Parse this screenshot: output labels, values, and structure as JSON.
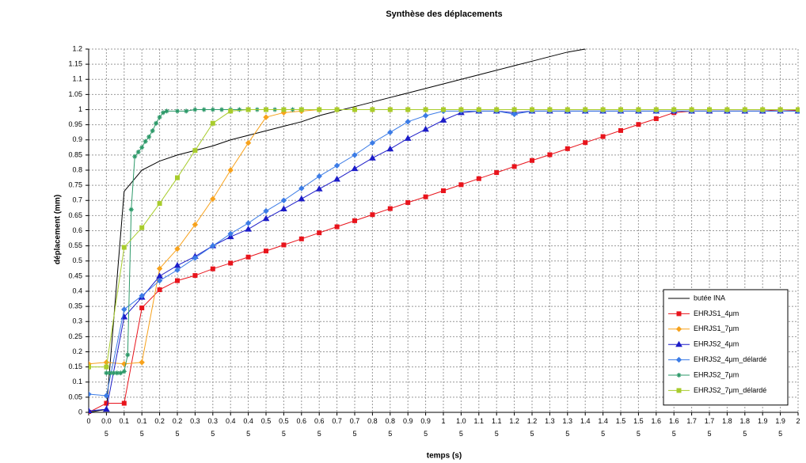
{
  "chart_data": {
    "type": "line",
    "title": "Synthèse des déplacements",
    "x_label": "temps (s)",
    "y_label": "déplacement (mm)",
    "x": [
      0,
      0.05,
      0.1,
      0.15,
      0.2,
      0.25,
      0.3,
      0.35,
      0.4,
      0.45,
      0.5,
      0.55,
      0.6,
      0.65,
      0.7,
      0.75,
      0.8,
      0.85,
      0.9,
      0.95,
      1,
      1.05,
      1.1,
      1.15,
      1.2,
      1.25,
      1.3,
      1.35,
      1.4,
      1.45,
      1.5,
      1.55,
      1.6,
      1.65,
      1.7,
      1.75,
      1.8,
      1.85,
      1.9,
      1.95,
      2
    ],
    "xlim": [
      0,
      2
    ],
    "xticks": [
      0,
      0.05,
      0.1,
      0.15,
      0.2,
      0.25,
      0.3,
      0.35,
      0.4,
      0.45,
      0.5,
      0.55,
      0.6,
      0.65,
      0.7,
      0.75,
      0.8,
      0.85,
      0.9,
      0.95,
      1,
      1.05,
      1.1,
      1.15,
      1.2,
      1.25,
      1.3,
      1.35,
      1.4,
      1.45,
      1.5,
      1.55,
      1.6,
      1.65,
      1.7,
      1.75,
      1.8,
      1.85,
      1.9,
      1.95,
      2
    ],
    "ylim": [
      0,
      1.2
    ],
    "yticks": [
      0,
      0.05,
      0.1,
      0.15,
      0.2,
      0.25,
      0.3,
      0.35,
      0.4,
      0.45,
      0.5,
      0.55,
      0.6,
      0.65,
      0.7,
      0.75,
      0.8,
      0.85,
      0.9,
      0.95,
      1,
      1.05,
      1.1,
      1.15,
      1.2
    ],
    "grid": true,
    "legend": "lower right",
    "series": [
      {
        "name": "butée INA",
        "color": "#000000",
        "marker": "none",
        "values": [
          0,
          0.01,
          0.73,
          0.8,
          0.83,
          0.85,
          0.865,
          0.88,
          0.9,
          0.915,
          0.93,
          0.945,
          0.96,
          0.98,
          0.995,
          1.01,
          1.025,
          1.04,
          1.055,
          1.07,
          1.085,
          1.1,
          1.115,
          1.13,
          1.145,
          1.16,
          1.175,
          1.19,
          1.2,
          null,
          null,
          null,
          null,
          null,
          null,
          null,
          null,
          null,
          null,
          null,
          null
        ]
      },
      {
        "name": "EHRJS1_4µm",
        "color": "#e8141c",
        "marker": "square",
        "values": [
          0,
          0.03,
          0.03,
          0.345,
          0.405,
          0.435,
          0.452,
          0.474,
          0.493,
          0.513,
          0.533,
          0.553,
          0.573,
          0.593,
          0.613,
          0.633,
          0.653,
          0.673,
          0.693,
          0.712,
          0.732,
          0.752,
          0.772,
          0.792,
          0.812,
          0.832,
          0.851,
          0.871,
          0.891,
          0.911,
          0.931,
          0.951,
          0.97,
          0.99,
          0.995,
          0.995,
          0.995,
          0.995,
          0.995,
          1,
          0.997
        ]
      },
      {
        "name": "EHRJS1_7µm",
        "color": "#f7a21c",
        "marker": "diamond",
        "values": [
          0.16,
          0.165,
          0.16,
          0.165,
          0.475,
          0.54,
          0.62,
          0.705,
          0.8,
          0.89,
          0.975,
          0.99,
          0.995,
          1,
          1,
          1,
          1,
          1,
          1,
          1,
          1,
          1,
          1,
          1,
          1,
          1,
          1,
          1,
          1,
          1,
          1,
          1,
          1,
          1,
          1,
          1,
          1,
          1,
          1,
          1,
          1
        ]
      },
      {
        "name": "EHRJS2_4µm",
        "color": "#1c1cc8",
        "marker": "triangle",
        "values": [
          0.005,
          0.01,
          0.315,
          0.38,
          0.45,
          0.485,
          0.515,
          0.55,
          0.58,
          0.605,
          0.64,
          0.672,
          0.705,
          0.738,
          0.77,
          0.805,
          0.84,
          0.87,
          0.905,
          0.935,
          0.965,
          0.99,
          0.995,
          0.995,
          0.99,
          0.995,
          0.995,
          0.995,
          0.995,
          0.995,
          0.995,
          0.995,
          0.995,
          0.995,
          0.995,
          0.995,
          0.995,
          0.995,
          0.995,
          0.995,
          0.995
        ]
      },
      {
        "name": "EHRJS2_4µm_délardé",
        "color": "#3c7ce6",
        "marker": "diamond",
        "values": [
          0.06,
          0.055,
          0.34,
          0.385,
          0.435,
          0.47,
          0.51,
          0.55,
          0.59,
          0.625,
          0.665,
          0.7,
          0.74,
          0.78,
          0.815,
          0.85,
          0.89,
          0.925,
          0.96,
          0.98,
          0.995,
          0.995,
          0.995,
          0.995,
          0.985,
          0.995,
          0.995,
          0.995,
          0.995,
          0.995,
          0.995,
          0.995,
          0.995,
          0.995,
          0.995,
          0.995,
          0.995,
          0.995,
          0.995,
          0.995,
          0.995
        ]
      },
      {
        "name": "EHRJS2_7µm",
        "color": "#2e9a6a",
        "marker": "star",
        "x": [
          0.05,
          0.06,
          0.07,
          0.08,
          0.09,
          0.1,
          0.11,
          0.12,
          0.13,
          0.14,
          0.15,
          0.16,
          0.17,
          0.18,
          0.19,
          0.2,
          0.21,
          0.22,
          0.25,
          0.275,
          0.3,
          0.325,
          0.35,
          0.375,
          0.4,
          0.425,
          0.45,
          0.475,
          0.5,
          0.525,
          0.55,
          0.575,
          0.6
        ],
        "values": [
          0.13,
          0.13,
          0.13,
          0.13,
          0.13,
          0.135,
          0.19,
          0.67,
          0.845,
          0.86,
          0.875,
          0.895,
          0.91,
          0.93,
          0.955,
          0.975,
          0.99,
          0.995,
          0.995,
          0.995,
          1,
          1,
          1,
          1,
          1,
          1,
          1,
          1,
          1,
          1,
          1,
          1,
          1
        ]
      },
      {
        "name": "EHRJS2_7µm_délardé",
        "color": "#a8cc2c",
        "marker": "square",
        "values": [
          0.15,
          0.15,
          0.545,
          0.61,
          0.69,
          0.775,
          0.865,
          0.955,
          0.995,
          1,
          1,
          1,
          1,
          1,
          1,
          1,
          1,
          1,
          1,
          1,
          1,
          1,
          1,
          1,
          1,
          1,
          1,
          1,
          1,
          1,
          1,
          1,
          1,
          1,
          1,
          1,
          1,
          1,
          1,
          1,
          1
        ]
      }
    ]
  }
}
